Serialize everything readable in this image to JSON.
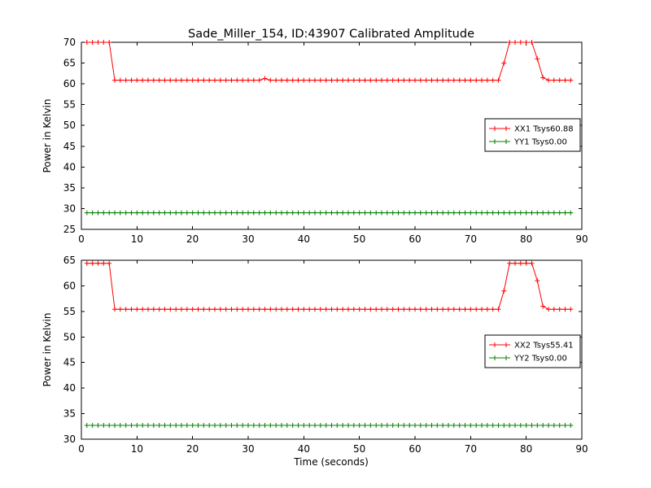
{
  "figure": {
    "title": "Sade_Miller_154, ID:43907 Calibrated Amplitude",
    "xlabel": "Time (seconds)",
    "background": "#ffffff",
    "frame_color": "#000000"
  },
  "chart_data": [
    {
      "type": "line",
      "ylabel": "Power in Kelvin",
      "xlim": [
        0,
        90
      ],
      "ylim": [
        25,
        70
      ],
      "xticks": [
        0,
        10,
        20,
        30,
        40,
        50,
        60,
        70,
        80,
        90
      ],
      "yticks": [
        25,
        30,
        35,
        40,
        45,
        50,
        55,
        60,
        65,
        70
      ],
      "legend_position": "right",
      "x": [
        1,
        2,
        3,
        4,
        5,
        6,
        7,
        8,
        9,
        10,
        11,
        12,
        13,
        14,
        15,
        16,
        17,
        18,
        19,
        20,
        21,
        22,
        23,
        24,
        25,
        26,
        27,
        28,
        29,
        30,
        31,
        32,
        33,
        34,
        35,
        36,
        37,
        38,
        39,
        40,
        41,
        42,
        43,
        44,
        45,
        46,
        47,
        48,
        49,
        50,
        51,
        52,
        53,
        54,
        55,
        56,
        57,
        58,
        59,
        60,
        61,
        62,
        63,
        64,
        65,
        66,
        67,
        68,
        69,
        70,
        71,
        72,
        73,
        74,
        75,
        76,
        77,
        78,
        79,
        80,
        81,
        82,
        83,
        84,
        85,
        86,
        87,
        88
      ],
      "series": [
        {
          "name": "XX1 Tsys60.88",
          "color": "#ff0000",
          "marker": "+",
          "y": [
            70,
            70,
            70,
            70,
            70,
            60.88,
            60.88,
            60.88,
            60.88,
            60.88,
            60.88,
            60.88,
            60.88,
            60.88,
            60.88,
            60.88,
            60.88,
            60.88,
            60.88,
            60.88,
            60.88,
            60.88,
            60.88,
            60.88,
            60.88,
            60.88,
            60.88,
            60.88,
            60.88,
            60.88,
            60.88,
            60.88,
            61.3,
            60.88,
            60.88,
            60.88,
            60.88,
            60.88,
            60.88,
            60.88,
            60.88,
            60.88,
            60.88,
            60.88,
            60.88,
            60.88,
            60.88,
            60.88,
            60.88,
            60.88,
            60.88,
            60.88,
            60.88,
            60.88,
            60.88,
            60.88,
            60.88,
            60.88,
            60.88,
            60.88,
            60.88,
            60.88,
            60.88,
            60.88,
            60.88,
            60.88,
            60.88,
            60.88,
            60.88,
            60.88,
            60.88,
            60.88,
            60.88,
            60.88,
            60.88,
            65,
            70,
            70,
            70,
            70,
            70,
            66,
            61.5,
            60.88,
            60.88,
            60.88,
            60.88,
            60.88
          ]
        },
        {
          "name": "YY1 Tsys0.00",
          "color": "#008000",
          "marker": "+",
          "y": [
            29,
            29,
            29,
            29,
            29,
            29,
            29,
            29,
            29,
            29,
            29,
            29,
            29,
            29,
            29,
            29,
            29,
            29,
            29,
            29,
            29,
            29,
            29,
            29,
            29,
            29,
            29,
            29,
            29,
            29,
            29,
            29,
            29,
            29,
            29,
            29,
            29,
            29,
            29,
            29,
            29,
            29,
            29,
            29,
            29,
            29,
            29,
            29,
            29,
            29,
            29,
            29,
            29,
            29,
            29,
            29,
            29,
            29,
            29,
            29,
            29,
            29,
            29,
            29,
            29,
            29,
            29,
            29,
            29,
            29,
            29,
            29,
            29,
            29,
            29,
            29,
            29,
            29,
            29,
            29,
            29,
            29,
            29,
            29,
            29,
            29,
            29,
            29
          ]
        }
      ]
    },
    {
      "type": "line",
      "ylabel": "Power in Kelvin",
      "xlim": [
        0,
        90
      ],
      "ylim": [
        30,
        65
      ],
      "xticks": [
        0,
        10,
        20,
        30,
        40,
        50,
        60,
        70,
        80,
        90
      ],
      "yticks": [
        30,
        35,
        40,
        45,
        50,
        55,
        60,
        65
      ],
      "legend_position": "right",
      "x": [
        1,
        2,
        3,
        4,
        5,
        6,
        7,
        8,
        9,
        10,
        11,
        12,
        13,
        14,
        15,
        16,
        17,
        18,
        19,
        20,
        21,
        22,
        23,
        24,
        25,
        26,
        27,
        28,
        29,
        30,
        31,
        32,
        33,
        34,
        35,
        36,
        37,
        38,
        39,
        40,
        41,
        42,
        43,
        44,
        45,
        46,
        47,
        48,
        49,
        50,
        51,
        52,
        53,
        54,
        55,
        56,
        57,
        58,
        59,
        60,
        61,
        62,
        63,
        64,
        65,
        66,
        67,
        68,
        69,
        70,
        71,
        72,
        73,
        74,
        75,
        76,
        77,
        78,
        79,
        80,
        81,
        82,
        83,
        84,
        85,
        86,
        87,
        88
      ],
      "series": [
        {
          "name": "XX2 Tsys55.41",
          "color": "#ff0000",
          "marker": "+",
          "y": [
            64.4,
            64.4,
            64.4,
            64.4,
            64.4,
            55.41,
            55.41,
            55.41,
            55.41,
            55.41,
            55.41,
            55.41,
            55.41,
            55.41,
            55.41,
            55.41,
            55.41,
            55.41,
            55.41,
            55.41,
            55.41,
            55.41,
            55.41,
            55.41,
            55.41,
            55.41,
            55.41,
            55.41,
            55.41,
            55.41,
            55.41,
            55.41,
            55.41,
            55.41,
            55.41,
            55.41,
            55.41,
            55.41,
            55.41,
            55.41,
            55.41,
            55.41,
            55.41,
            55.41,
            55.41,
            55.41,
            55.41,
            55.41,
            55.41,
            55.41,
            55.41,
            55.41,
            55.41,
            55.41,
            55.41,
            55.41,
            55.41,
            55.41,
            55.41,
            55.41,
            55.41,
            55.41,
            55.41,
            55.41,
            55.41,
            55.41,
            55.41,
            55.41,
            55.41,
            55.41,
            55.41,
            55.41,
            55.41,
            55.41,
            55.41,
            59,
            64.4,
            64.4,
            64.4,
            64.4,
            64.4,
            61,
            56,
            55.41,
            55.41,
            55.41,
            55.41,
            55.41
          ]
        },
        {
          "name": "YY2 Tsys0.00",
          "color": "#008000",
          "marker": "+",
          "y": [
            32.7,
            32.7,
            32.7,
            32.7,
            32.7,
            32.7,
            32.7,
            32.7,
            32.7,
            32.7,
            32.7,
            32.7,
            32.7,
            32.7,
            32.7,
            32.7,
            32.7,
            32.7,
            32.7,
            32.7,
            32.7,
            32.7,
            32.7,
            32.7,
            32.7,
            32.7,
            32.7,
            32.7,
            32.7,
            32.7,
            32.7,
            32.7,
            32.7,
            32.7,
            32.7,
            32.7,
            32.7,
            32.7,
            32.7,
            32.7,
            32.7,
            32.7,
            32.7,
            32.7,
            32.7,
            32.7,
            32.7,
            32.7,
            32.7,
            32.7,
            32.7,
            32.7,
            32.7,
            32.7,
            32.7,
            32.7,
            32.7,
            32.7,
            32.7,
            32.7,
            32.7,
            32.7,
            32.7,
            32.7,
            32.7,
            32.7,
            32.7,
            32.7,
            32.7,
            32.7,
            32.7,
            32.7,
            32.7,
            32.7,
            32.7,
            32.7,
            32.7,
            32.7,
            32.7,
            32.7,
            32.7,
            32.7,
            32.7,
            32.7,
            32.7,
            32.7,
            32.7,
            32.7
          ]
        }
      ]
    }
  ]
}
